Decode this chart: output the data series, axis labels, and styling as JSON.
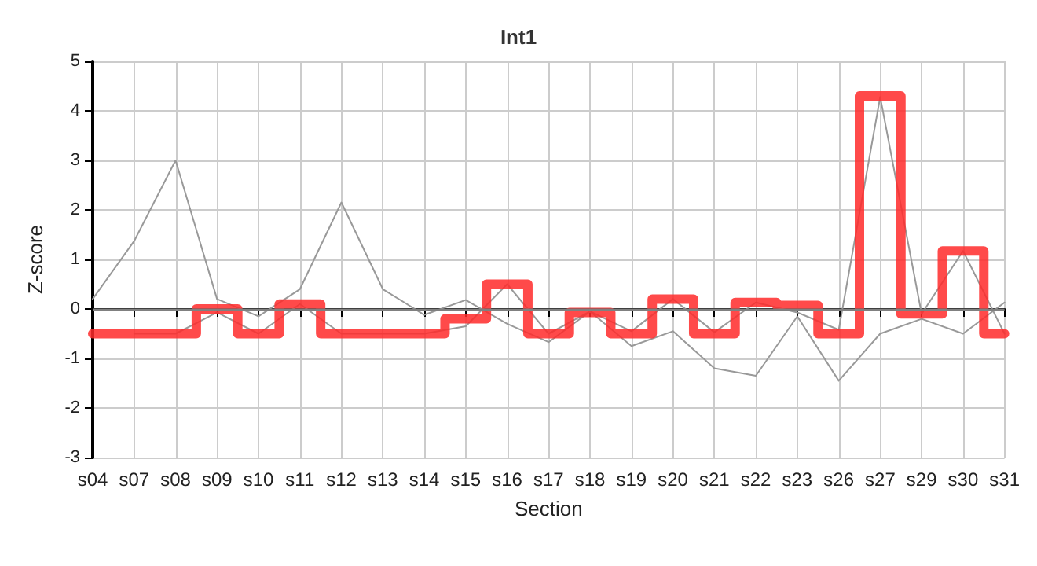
{
  "chart_data": {
    "type": "line",
    "title": "Int1",
    "xlabel": "Section",
    "ylabel": "Z-score",
    "categories": [
      "s04",
      "s07",
      "s08",
      "s09",
      "s10",
      "s11",
      "s12",
      "s13",
      "s14",
      "s15",
      "s16",
      "s17",
      "s18",
      "s19",
      "s20",
      "s21",
      "s22",
      "s23",
      "s26",
      "s27",
      "s29",
      "s30",
      "s31"
    ],
    "series": [
      {
        "color": "#999999",
        "values": [
          0.2,
          1.37,
          3.0,
          0.2,
          -0.15,
          0.4,
          2.15,
          0.4,
          -0.12,
          0.18,
          -0.3,
          -0.67,
          -0.05,
          -0.45,
          0.2,
          -0.47,
          0.13,
          -0.07,
          -0.42,
          4.28,
          -0.1,
          1.17,
          -0.5
        ]
      },
      {
        "color": "#999999",
        "values": [
          null,
          -0.5,
          -0.5,
          -0.07,
          -0.5,
          0.1,
          -0.5,
          -0.5,
          -0.5,
          -0.35,
          0.5,
          -0.5,
          -0.05,
          -0.75,
          -0.45,
          -1.2,
          -1.35,
          -0.15,
          -1.45,
          -0.5,
          -0.2,
          -0.5,
          0.13
        ]
      },
      {
        "type": "step",
        "color": "#ff2a2a",
        "values": [
          -0.5,
          -0.5,
          -0.5,
          0,
          -0.5,
          0.1,
          -0.5,
          -0.5,
          -0.5,
          -0.2,
          0.5,
          -0.5,
          -0.07,
          -0.5,
          0.2,
          -0.5,
          0.13,
          0.07,
          -0.5,
          4.3,
          -0.1,
          1.17,
          -0.5
        ]
      }
    ],
    "ylim": [
      -3,
      5
    ],
    "yticks": [
      -3,
      -2,
      -1,
      0,
      1,
      2,
      3,
      4,
      5
    ],
    "grid": true,
    "marker": "none",
    "line_style": "solid",
    "ref_lines": [
      {
        "axis": "y",
        "value": 0,
        "color": "#808080"
      }
    ]
  }
}
